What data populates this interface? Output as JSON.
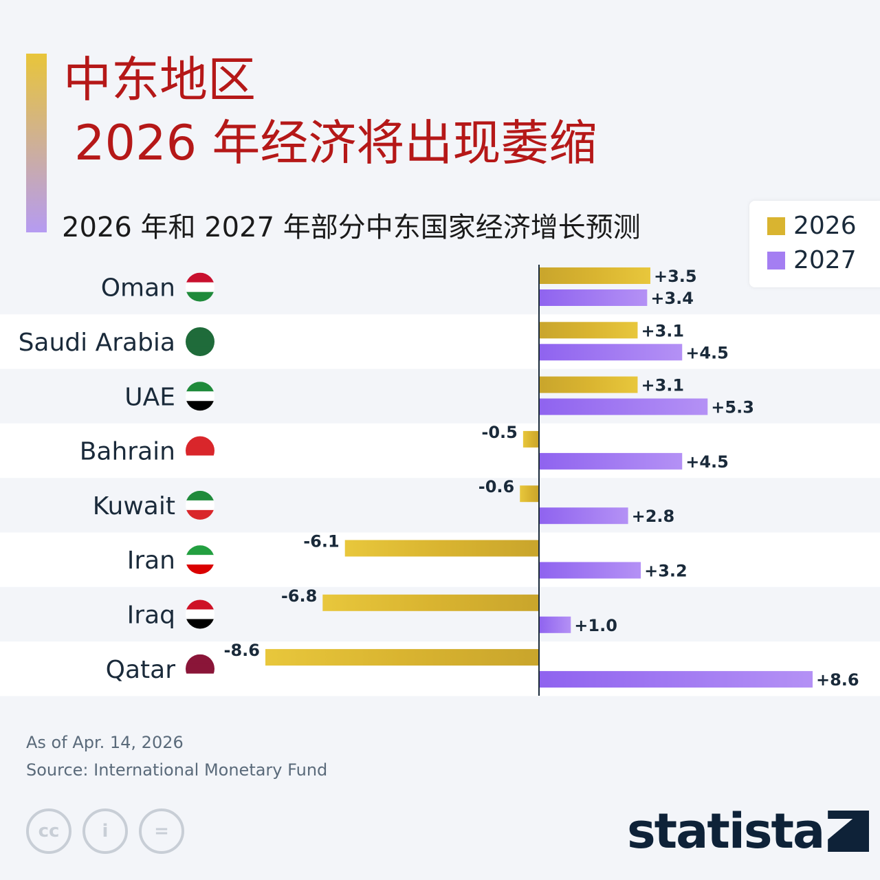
{
  "title": {
    "line1": "中东地区",
    "line2": "2026 年经济将出现萎缩"
  },
  "subtitle": "2026 年和 2027 年部分中东国家经济增长预测",
  "colors": {
    "y2026": "#d9b430",
    "y2027": "#a47ef2",
    "title": "#b51818",
    "axis": "#1a2a3a"
  },
  "footer": {
    "date": "As of Apr. 14, 2026",
    "source": "Source: International Monetary Fund"
  },
  "license_icons": [
    "cc-icon",
    "attribution-icon",
    "no-derivatives-icon"
  ],
  "logo": {
    "text": "statista"
  },
  "chart_data": {
    "type": "bar",
    "orientation": "horizontal",
    "categories": [
      "Oman",
      "Saudi Arabia",
      "UAE",
      "Bahrain",
      "Kuwait",
      "Iran",
      "Iraq",
      "Qatar"
    ],
    "series": [
      {
        "name": "2026",
        "values": [
          3.5,
          3.1,
          3.1,
          -0.5,
          -0.6,
          -6.1,
          -6.8,
          -8.6
        ],
        "labels": [
          "+3.5",
          "+3.1",
          "+3.1",
          "-0.5",
          "-0.6",
          "-6.1",
          "-6.8",
          "-8.6"
        ]
      },
      {
        "name": "2027",
        "values": [
          3.4,
          4.5,
          5.3,
          4.5,
          2.8,
          3.2,
          1.0,
          8.6
        ],
        "labels": [
          "+3.4",
          "+4.5",
          "+5.3",
          "+4.5",
          "+2.8",
          "+3.2",
          "+1.0",
          "+8.6"
        ]
      }
    ],
    "legend": {
      "position": "top-right",
      "items": [
        "2026",
        "2027"
      ]
    },
    "xlim": [
      -8.6,
      8.6
    ]
  }
}
